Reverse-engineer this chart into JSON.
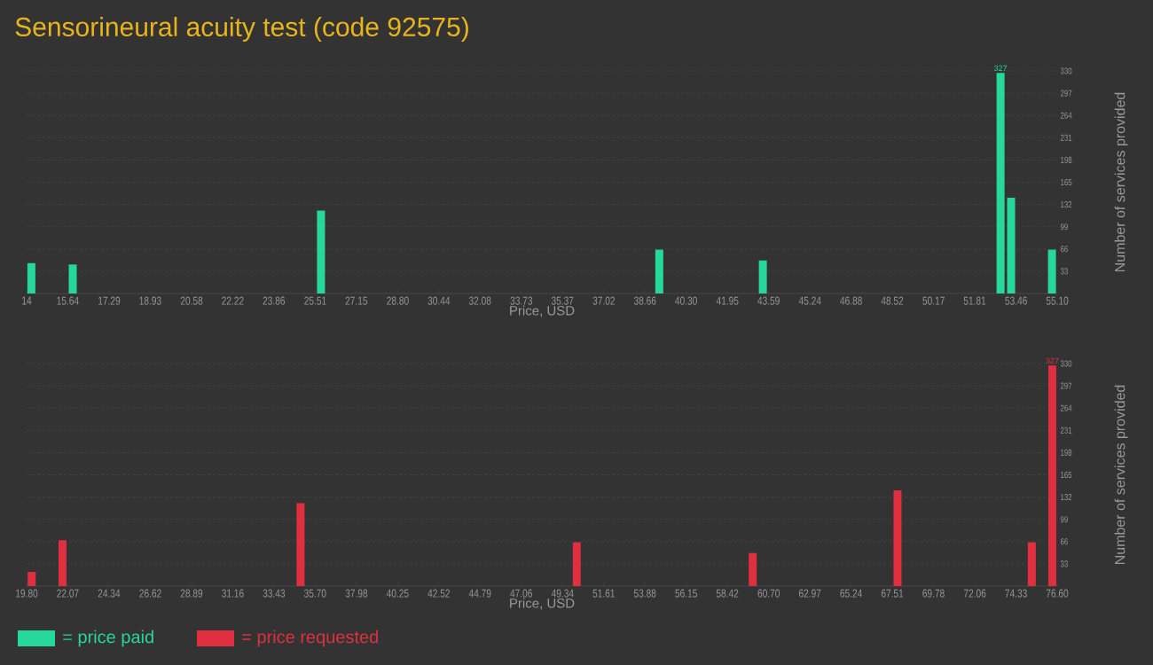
{
  "chart_data": [
    {
      "type": "bar",
      "title": "Sensorineural acuity test (code 92575)",
      "xlabel": "Price, USD",
      "ylabel": "Number of services provided",
      "x": [
        14.19,
        15.84,
        25.74,
        39.23,
        43.36,
        52.84,
        53.26,
        54.89
      ],
      "series": [
        {
          "name": "= price paid",
          "color": "#26d99a",
          "values": [
            45,
            43,
            123,
            65,
            49,
            327,
            142,
            65
          ],
          "value_labels": [
            null,
            null,
            null,
            null,
            null,
            "327",
            null,
            null
          ]
        }
      ],
      "xlim": [
        14,
        55.1
      ],
      "ylim": [
        0,
        330
      ],
      "xticks": [
        14,
        15.64,
        17.29,
        18.93,
        20.58,
        22.22,
        23.86,
        25.51,
        27.15,
        {
          "value": 28.8,
          "label": "28.80"
        },
        30.44,
        32.08,
        33.73,
        35.37,
        37.02,
        38.66,
        {
          "value": 40.3,
          "label": "40.30"
        },
        41.95,
        43.59,
        45.24,
        46.88,
        48.52,
        50.17,
        51.81,
        53.46,
        {
          "value": 55.1,
          "label": "55.10"
        }
      ],
      "yticks": [
        33,
        66,
        99,
        132,
        165,
        198,
        231,
        264,
        297,
        330
      ],
      "grid": "y",
      "legend": "bottom left"
    },
    {
      "type": "bar",
      "xlabel": "Price, USD",
      "ylabel": "Number of services provided",
      "x": [
        20.08,
        21.78,
        34.9,
        50.12,
        59.82,
        67.8,
        75.2,
        76.33
      ],
      "series": [
        {
          "name": "= price requested",
          "color": "#e0303f",
          "values": [
            21,
            68,
            123,
            65,
            49,
            142,
            65,
            327
          ],
          "value_labels": [
            null,
            null,
            null,
            null,
            null,
            null,
            null,
            "327"
          ]
        }
      ],
      "xlim": [
        19.8,
        76.6
      ],
      "ylim": [
        0,
        330
      ],
      "xticks": [
        {
          "value": 19.8,
          "label": "19.80"
        },
        22.07,
        24.34,
        26.62,
        28.89,
        31.16,
        33.43,
        {
          "value": 35.7,
          "label": "35.70"
        },
        37.98,
        40.25,
        42.52,
        44.79,
        47.06,
        49.34,
        51.61,
        53.88,
        56.15,
        58.42,
        {
          "value": 60.7,
          "label": "60.70"
        },
        62.97,
        65.24,
        67.51,
        69.78,
        72.06,
        74.33,
        {
          "value": 76.6,
          "label": "76.60"
        }
      ],
      "yticks": [
        33,
        66,
        99,
        132,
        165,
        198,
        231,
        264,
        297,
        330
      ],
      "grid": "y",
      "legend": "bottom left"
    }
  ]
}
